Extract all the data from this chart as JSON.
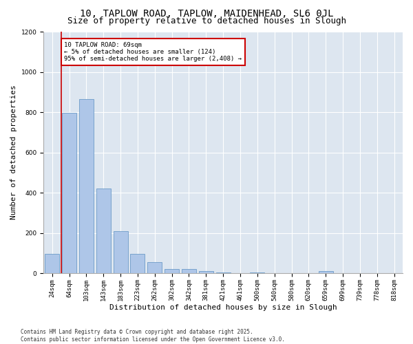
{
  "title1": "10, TAPLOW ROAD, TAPLOW, MAIDENHEAD, SL6 0JL",
  "title2": "Size of property relative to detached houses in Slough",
  "xlabel": "Distribution of detached houses by size in Slough",
  "ylabel": "Number of detached properties",
  "categories": [
    "24sqm",
    "64sqm",
    "103sqm",
    "143sqm",
    "183sqm",
    "223sqm",
    "262sqm",
    "302sqm",
    "342sqm",
    "381sqm",
    "421sqm",
    "461sqm",
    "500sqm",
    "540sqm",
    "580sqm",
    "620sqm",
    "659sqm",
    "699sqm",
    "739sqm",
    "778sqm",
    "818sqm"
  ],
  "values": [
    95,
    795,
    865,
    420,
    210,
    95,
    55,
    20,
    20,
    10,
    5,
    0,
    5,
    0,
    0,
    0,
    10,
    0,
    0,
    0,
    0
  ],
  "bar_color": "#aec6e8",
  "bar_edge_color": "#5a8fc0",
  "vline_x_index": 1,
  "vline_color": "#cc0000",
  "annotation_text": "10 TAPLOW ROAD: 69sqm\n← 5% of detached houses are smaller (124)\n95% of semi-detached houses are larger (2,408) →",
  "annotation_box_color": "#cc0000",
  "ylim": [
    0,
    1200
  ],
  "yticks": [
    0,
    200,
    400,
    600,
    800,
    1000,
    1200
  ],
  "bg_color": "#dde6f0",
  "footer_line1": "Contains HM Land Registry data © Crown copyright and database right 2025.",
  "footer_line2": "Contains public sector information licensed under the Open Government Licence v3.0.",
  "title1_fontsize": 10,
  "title2_fontsize": 9,
  "xlabel_fontsize": 8,
  "ylabel_fontsize": 8,
  "tick_fontsize": 6.5,
  "annotation_fontsize": 6.5,
  "footer_fontsize": 5.5
}
